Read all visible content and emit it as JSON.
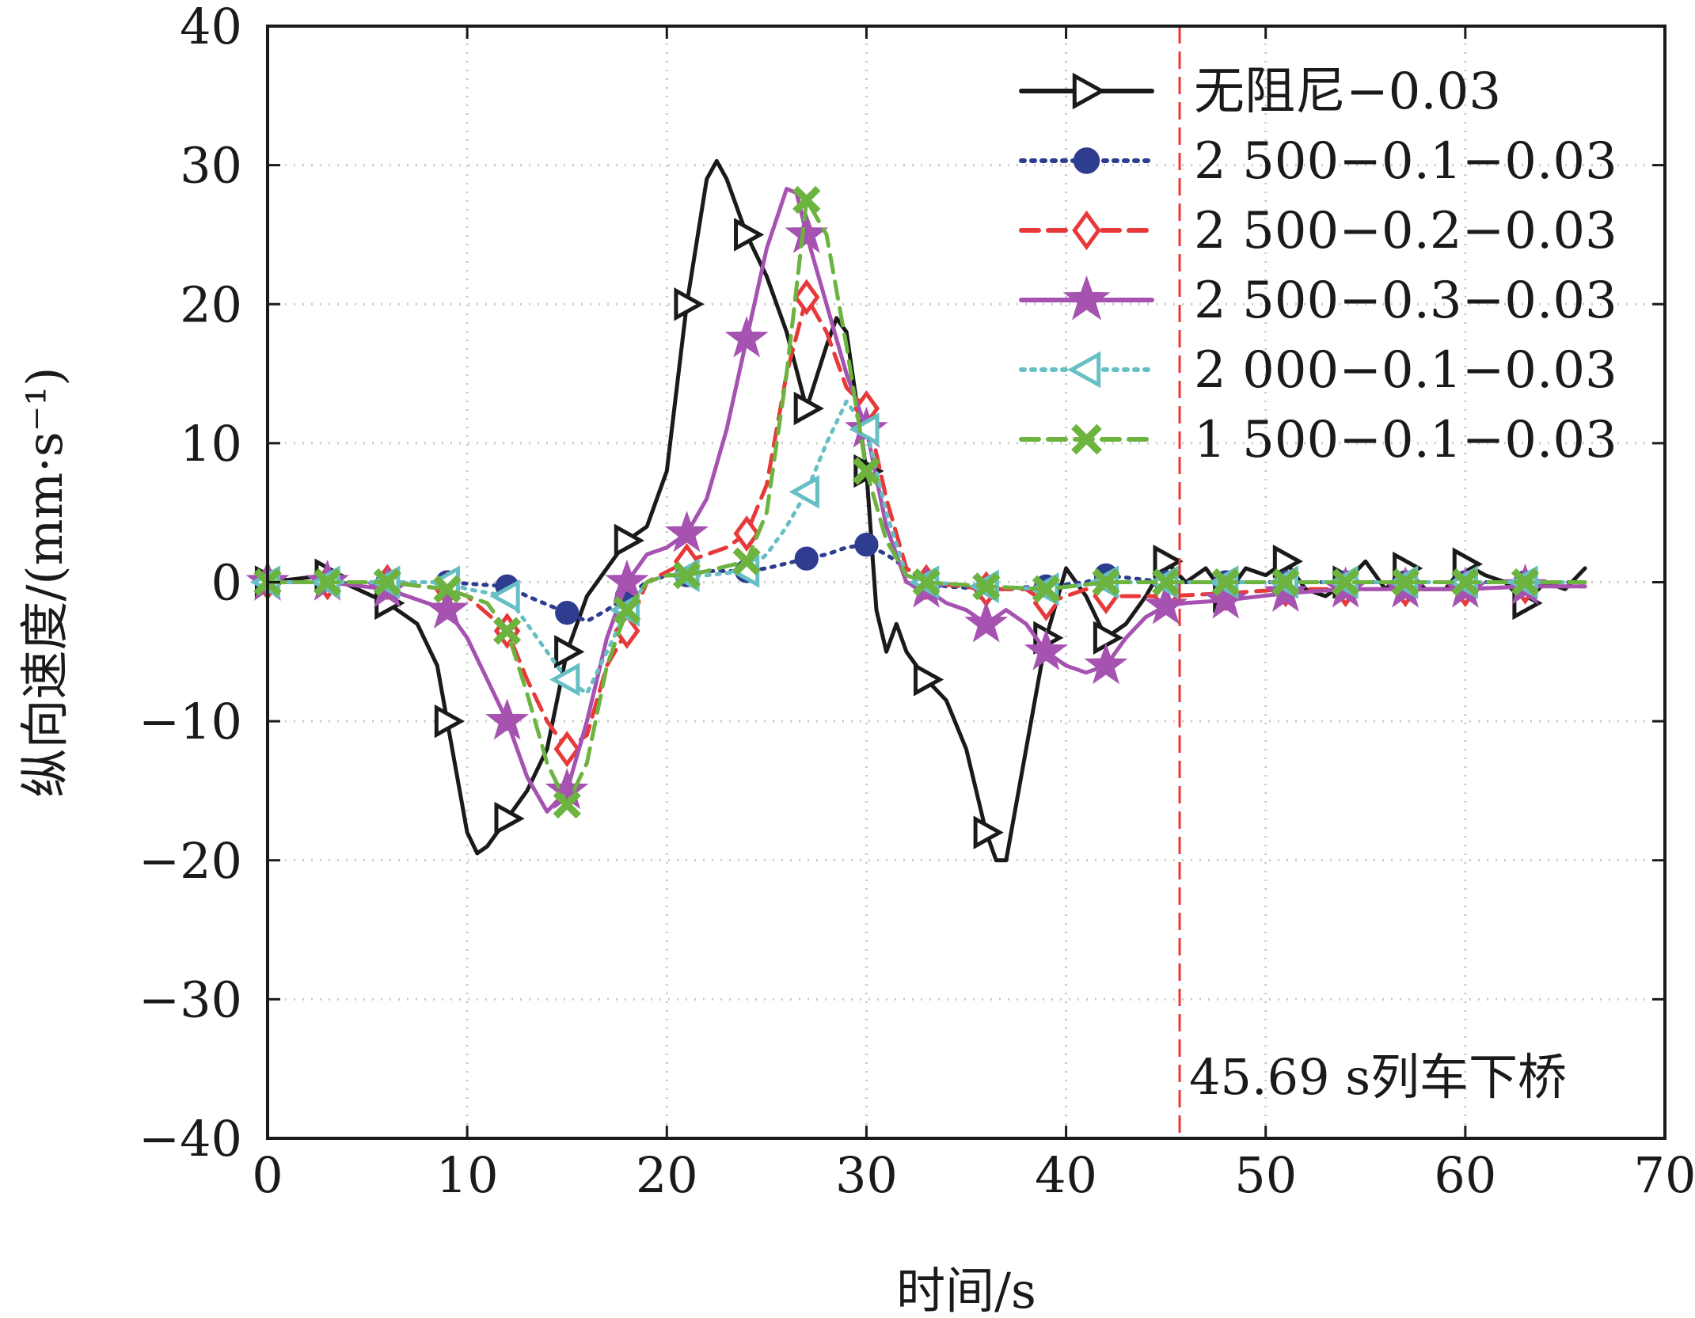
{
  "chart_data": {
    "type": "line",
    "title": "",
    "xlabel": "时间/s",
    "ylabel": "纵向速度/(mm·s⁻¹)",
    "xlim": [
      0,
      70
    ],
    "ylim": [
      -40,
      40
    ],
    "xticks": [
      0,
      10,
      20,
      30,
      40,
      50,
      60,
      70
    ],
    "yticks": [
      -40,
      -30,
      -20,
      -10,
      0,
      10,
      20,
      30,
      40
    ],
    "grid": true,
    "grid_style": "dotted",
    "legend_position": "top-right",
    "vline": {
      "x": 45.69,
      "color": "#e8393a",
      "label": "45.69 s列车下桥"
    },
    "series": [
      {
        "name": "无阻尼−0.03",
        "color": "#1a1a1a",
        "dash": "solid",
        "marker": "triangle-right",
        "marker_x": [
          0,
          3,
          6,
          9,
          12,
          15,
          18,
          21,
          24,
          27,
          30,
          33,
          36,
          39,
          42,
          45,
          48,
          51,
          54,
          57,
          60,
          63
        ],
        "points": [
          [
            0,
            0
          ],
          [
            3,
            0.5
          ],
          [
            6,
            -1.5
          ],
          [
            7.5,
            -3
          ],
          [
            8.5,
            -6
          ],
          [
            9,
            -10
          ],
          [
            10,
            -18
          ],
          [
            10.5,
            -19.5
          ],
          [
            11,
            -19
          ],
          [
            12,
            -17
          ],
          [
            13,
            -15
          ],
          [
            14,
            -12
          ],
          [
            15,
            -5
          ],
          [
            16,
            -1
          ],
          [
            17,
            1
          ],
          [
            18,
            3
          ],
          [
            19,
            4
          ],
          [
            20,
            8
          ],
          [
            21,
            20
          ],
          [
            22,
            29
          ],
          [
            22.5,
            30.3
          ],
          [
            23,
            29
          ],
          [
            24,
            25
          ],
          [
            25,
            22
          ],
          [
            26,
            18
          ],
          [
            27,
            12.5
          ],
          [
            28,
            17
          ],
          [
            28.5,
            19
          ],
          [
            29,
            18
          ],
          [
            30,
            8
          ],
          [
            30.5,
            -2
          ],
          [
            31,
            -5
          ],
          [
            31.5,
            -3
          ],
          [
            32,
            -5
          ],
          [
            33,
            -7
          ],
          [
            34,
            -8.5
          ],
          [
            35,
            -12
          ],
          [
            36,
            -18
          ],
          [
            36.5,
            -20
          ],
          [
            37,
            -20
          ],
          [
            38,
            -12
          ],
          [
            39,
            -4
          ],
          [
            40,
            1
          ],
          [
            41,
            -1
          ],
          [
            42,
            -4
          ],
          [
            43,
            -3
          ],
          [
            44,
            -1
          ],
          [
            45,
            1.5
          ],
          [
            46,
            0
          ],
          [
            47,
            1
          ],
          [
            48,
            -1
          ],
          [
            49,
            1
          ],
          [
            50,
            0.5
          ],
          [
            51,
            1.5
          ],
          [
            52,
            -0.5
          ],
          [
            53,
            -1
          ],
          [
            54,
            0
          ],
          [
            55,
            1.5
          ],
          [
            56,
            -0.5
          ],
          [
            57,
            1
          ],
          [
            58,
            -0.5
          ],
          [
            59,
            -0.5
          ],
          [
            60,
            1.3
          ],
          [
            61,
            0.5
          ],
          [
            62,
            0
          ],
          [
            63,
            -1.5
          ],
          [
            64,
            0
          ],
          [
            65,
            -0.5
          ],
          [
            66,
            1
          ]
        ]
      },
      {
        "name": "2 500−0.1−0.03",
        "color": "#2e3d8f",
        "dash": "dotted",
        "marker": "circle",
        "marker_x": [
          0,
          3,
          6,
          9,
          12,
          15,
          18,
          21,
          24,
          27,
          30,
          33,
          36,
          39,
          42,
          45,
          48,
          51,
          54,
          57,
          60,
          63
        ],
        "points": [
          [
            0,
            0
          ],
          [
            3,
            0
          ],
          [
            6,
            0
          ],
          [
            9,
            0
          ],
          [
            12,
            -0.3
          ],
          [
            13,
            -1
          ],
          [
            15,
            -2.2
          ],
          [
            16,
            -2.8
          ],
          [
            17,
            -2
          ],
          [
            18,
            -1
          ],
          [
            19,
            0
          ],
          [
            20,
            0.5
          ],
          [
            21,
            0.5
          ],
          [
            22,
            0.8
          ],
          [
            24,
            0.8
          ],
          [
            25,
            1
          ],
          [
            27,
            1.7
          ],
          [
            28,
            2
          ],
          [
            29,
            2.5
          ],
          [
            30,
            2.7
          ],
          [
            31,
            2
          ],
          [
            32,
            1
          ],
          [
            33,
            0
          ],
          [
            34,
            -0.3
          ],
          [
            36,
            -0.5
          ],
          [
            39,
            -0.3
          ],
          [
            41,
            0
          ],
          [
            42,
            0.5
          ],
          [
            45,
            0
          ],
          [
            48,
            0
          ],
          [
            51,
            0
          ],
          [
            54,
            0
          ],
          [
            57,
            0
          ],
          [
            60,
            0
          ],
          [
            63,
            0
          ],
          [
            66,
            0
          ]
        ]
      },
      {
        "name": "2 500−0.2−0.03",
        "color": "#e8393a",
        "dash": "dashed",
        "marker": "diamond",
        "marker_x": [
          0,
          3,
          6,
          9,
          12,
          15,
          18,
          21,
          24,
          27,
          30,
          33,
          36,
          39,
          42,
          45,
          48,
          51,
          54,
          57,
          60,
          63
        ],
        "points": [
          [
            0,
            0
          ],
          [
            3,
            0
          ],
          [
            6,
            0
          ],
          [
            9,
            -0.5
          ],
          [
            10,
            -1
          ],
          [
            12,
            -3.5
          ],
          [
            13,
            -7
          ],
          [
            14,
            -10
          ],
          [
            15,
            -12
          ],
          [
            16,
            -11
          ],
          [
            17,
            -6
          ],
          [
            18,
            -3.5
          ],
          [
            19,
            0
          ],
          [
            21,
            1.5
          ],
          [
            22,
            2
          ],
          [
            23,
            2.5
          ],
          [
            24,
            3.5
          ],
          [
            25,
            7
          ],
          [
            26,
            15
          ],
          [
            27,
            20.5
          ],
          [
            28,
            18
          ],
          [
            29,
            14
          ],
          [
            30,
            12.5
          ],
          [
            31,
            6
          ],
          [
            32,
            1
          ],
          [
            33,
            0
          ],
          [
            36,
            -0.5
          ],
          [
            38,
            -0.5
          ],
          [
            39,
            -1.5
          ],
          [
            40,
            -1
          ],
          [
            41,
            -0.5
          ],
          [
            42,
            -1
          ],
          [
            45,
            -1
          ],
          [
            48,
            -0.8
          ],
          [
            51,
            -0.5
          ],
          [
            54,
            -0.5
          ],
          [
            57,
            -0.5
          ],
          [
            60,
            -0.5
          ],
          [
            63,
            -0.3
          ],
          [
            66,
            -0.3
          ]
        ]
      },
      {
        "name": "2 500−0.3−0.03",
        "color": "#a552b0",
        "dash": "solid",
        "marker": "star",
        "marker_x": [
          0,
          3,
          6,
          9,
          12,
          15,
          18,
          21,
          24,
          27,
          30,
          33,
          36,
          39,
          42,
          45,
          48,
          51,
          54,
          57,
          60,
          63
        ],
        "points": [
          [
            0,
            0
          ],
          [
            3,
            0
          ],
          [
            6,
            -0.5
          ],
          [
            7,
            -1
          ],
          [
            9,
            -2
          ],
          [
            10,
            -4
          ],
          [
            11,
            -7
          ],
          [
            12,
            -10
          ],
          [
            13,
            -14
          ],
          [
            14,
            -16.5
          ],
          [
            15,
            -15
          ],
          [
            16,
            -10
          ],
          [
            17,
            -4
          ],
          [
            18,
            0
          ],
          [
            19,
            2
          ],
          [
            20,
            2.5
          ],
          [
            21,
            3.5
          ],
          [
            22,
            6
          ],
          [
            23,
            11
          ],
          [
            24,
            17.5
          ],
          [
            25,
            24
          ],
          [
            26,
            28.3
          ],
          [
            26.5,
            28
          ],
          [
            27,
            25
          ],
          [
            28,
            20
          ],
          [
            29,
            15
          ],
          [
            30,
            11
          ],
          [
            31,
            4
          ],
          [
            32,
            0
          ],
          [
            33,
            -0.5
          ],
          [
            34,
            -1.5
          ],
          [
            35,
            -2
          ],
          [
            36,
            -3
          ],
          [
            37,
            -2
          ],
          [
            38,
            -3
          ],
          [
            39,
            -5
          ],
          [
            40,
            -6
          ],
          [
            41,
            -6.5
          ],
          [
            42,
            -6
          ],
          [
            43,
            -4
          ],
          [
            44,
            -2.5
          ],
          [
            45,
            -1.7
          ],
          [
            46,
            -1.5
          ],
          [
            48,
            -1.3
          ],
          [
            51,
            -0.8
          ],
          [
            54,
            -0.5
          ],
          [
            57,
            -0.5
          ],
          [
            60,
            -0.5
          ],
          [
            63,
            -0.3
          ],
          [
            66,
            -0.3
          ]
        ]
      },
      {
        "name": "2 000−0.1−0.03",
        "color": "#66bfc4",
        "dash": "dotted",
        "marker": "triangle-left",
        "marker_x": [
          0,
          3,
          6,
          9,
          12,
          15,
          18,
          21,
          24,
          27,
          30,
          33,
          36,
          39,
          42,
          45,
          48,
          51,
          54,
          57,
          60,
          63
        ],
        "points": [
          [
            0,
            0
          ],
          [
            3,
            0
          ],
          [
            6,
            0
          ],
          [
            9,
            0
          ],
          [
            10,
            -0.5
          ],
          [
            12,
            -1
          ],
          [
            13,
            -3
          ],
          [
            14,
            -5
          ],
          [
            15,
            -7
          ],
          [
            16,
            -8
          ],
          [
            17,
            -5
          ],
          [
            18,
            -2
          ],
          [
            19,
            0
          ],
          [
            20,
            0.5
          ],
          [
            21,
            0.5
          ],
          [
            22,
            0.5
          ],
          [
            24,
            0.8
          ],
          [
            25,
            2
          ],
          [
            26,
            4
          ],
          [
            27,
            6.5
          ],
          [
            28,
            10
          ],
          [
            29,
            13
          ],
          [
            30,
            11
          ],
          [
            31,
            5
          ],
          [
            32,
            0.5
          ],
          [
            33,
            0
          ],
          [
            36,
            -0.3
          ],
          [
            39,
            -0.5
          ],
          [
            42,
            0
          ],
          [
            45,
            0
          ],
          [
            48,
            0
          ],
          [
            51,
            0
          ],
          [
            54,
            0
          ],
          [
            57,
            0
          ],
          [
            60,
            0
          ],
          [
            63,
            0
          ],
          [
            66,
            0
          ]
        ]
      },
      {
        "name": "1 500−0.1−0.03",
        "color": "#6cb33f",
        "dash": "dashed",
        "marker": "x",
        "marker_x": [
          0,
          3,
          6,
          9,
          12,
          15,
          18,
          21,
          24,
          27,
          30,
          33,
          36,
          39,
          42,
          45,
          48,
          51,
          54,
          57,
          60,
          63
        ],
        "points": [
          [
            0,
            0
          ],
          [
            3,
            0
          ],
          [
            6,
            0
          ],
          [
            9,
            -0.5
          ],
          [
            11,
            -1.5
          ],
          [
            12,
            -3.5
          ],
          [
            13,
            -8
          ],
          [
            14,
            -13
          ],
          [
            15,
            -16
          ],
          [
            16,
            -13
          ],
          [
            17,
            -6
          ],
          [
            18,
            -2
          ],
          [
            19,
            0
          ],
          [
            20,
            0.5
          ],
          [
            21,
            0.5
          ],
          [
            22,
            0.8
          ],
          [
            24,
            1.5
          ],
          [
            25,
            5
          ],
          [
            26,
            15
          ],
          [
            27,
            27.5
          ],
          [
            28,
            25
          ],
          [
            29,
            17
          ],
          [
            30,
            8
          ],
          [
            31,
            3
          ],
          [
            32,
            0.5
          ],
          [
            33,
            0
          ],
          [
            36,
            -0.3
          ],
          [
            39,
            -0.5
          ],
          [
            42,
            0
          ],
          [
            45,
            0
          ],
          [
            48,
            0
          ],
          [
            51,
            0
          ],
          [
            54,
            0
          ],
          [
            57,
            0
          ],
          [
            60,
            0
          ],
          [
            63,
            0
          ],
          [
            66,
            0
          ]
        ]
      }
    ]
  }
}
